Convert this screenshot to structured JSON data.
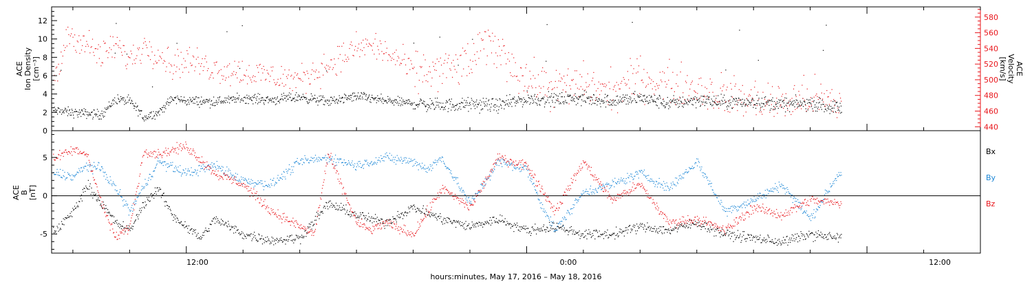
{
  "colors": {
    "black": "#000000",
    "red": "#e8141a",
    "blue": "#1a86d6"
  },
  "xaxis": {
    "title": "hours:minutes, May 17, 2016 – May 18, 2016",
    "ticks": [
      "12:00",
      "0:00",
      "12:00"
    ],
    "range_hours": [
      -4.75,
      28.0
    ],
    "tick_hours": [
      0,
      12,
      24
    ]
  },
  "chart_data": [
    {
      "type": "scatter",
      "panel": "top",
      "ylabel_left": [
        "ACE",
        "Ion Density",
        "[cm⁻³]"
      ],
      "ylabel_right": [
        "ACE",
        "Velocity",
        "[km/s]"
      ],
      "yticks_left": [
        "0",
        "2",
        "4",
        "6",
        "8",
        "10",
        "12"
      ],
      "yticks_right": [
        "440",
        "460",
        "480",
        "500",
        "520",
        "540",
        "560",
        "580"
      ],
      "ylim_left": [
        0,
        13.5
      ],
      "ylim_right": [
        435,
        593
      ],
      "x_unit": "hours from May 17, 2016 12:00",
      "series": [
        {
          "axis": "left",
          "color": "#000000",
          "x": [
            -4.6,
            -4.0,
            -3.0,
            -2.5,
            -2.0,
            -1.5,
            -1.0,
            -0.5,
            0.0,
            1.0,
            2.0,
            3.0,
            4.0,
            5.0,
            6.0,
            7.0,
            8.0,
            9.0,
            10.0,
            11.0,
            12.0,
            13.0,
            13.5,
            14.0,
            15.0,
            16.0,
            17.0,
            18.0,
            19.0,
            20.0,
            21.0,
            22.0,
            23.0
          ],
          "y": [
            2.2,
            2.0,
            1.8,
            3.5,
            3.2,
            1.5,
            2.0,
            3.5,
            3.3,
            3.2,
            3.6,
            3.4,
            3.7,
            3.2,
            3.8,
            3.3,
            3.0,
            2.8,
            2.9,
            2.8,
            3.5,
            3.4,
            3.6,
            3.5,
            3.3,
            3.6,
            3.0,
            3.4,
            3.1,
            3.2,
            2.9,
            3.0,
            2.5
          ]
        },
        {
          "axis": "right",
          "color": "#e8141a",
          "x": [
            -4.6,
            -4.2,
            -3.5,
            -3.0,
            -2.5,
            -2.0,
            -1.5,
            -1.0,
            -0.5,
            0.0,
            1.0,
            2.0,
            3.0,
            4.0,
            5.0,
            5.5,
            6.0,
            6.5,
            7.0,
            7.5,
            8.0,
            9.0,
            10.0,
            10.5,
            11.0,
            12.0,
            13.0,
            14.0,
            15.0,
            16.0,
            17.0,
            18.0,
            19.0,
            20.0,
            21.0,
            22.0,
            23.0
          ],
          "y": [
            500,
            560,
            545,
            530,
            545,
            525,
            545,
            535,
            520,
            525,
            515,
            510,
            505,
            500,
            520,
            530,
            540,
            545,
            535,
            525,
            510,
            512,
            522,
            545,
            540,
            500,
            490,
            495,
            485,
            505,
            495,
            490,
            480,
            475,
            470,
            478,
            468
          ]
        }
      ]
    },
    {
      "type": "scatter",
      "panel": "bottom",
      "ylabel_left": [
        "ACE",
        "B",
        "[nT]"
      ],
      "yticks_left": [
        "-5",
        "0",
        "5"
      ],
      "ylim": [
        -7.5,
        8.5
      ],
      "legend": [
        "Bx",
        "By",
        "Bz"
      ],
      "x_unit": "hours from May 17, 2016 12:00",
      "series": [
        {
          "name": "Bx",
          "color": "#000000",
          "x": [
            -4.6,
            -4.0,
            -3.5,
            -3.0,
            -2.5,
            -2.0,
            -1.5,
            -1.0,
            -0.5,
            0.0,
            0.5,
            1.0,
            1.5,
            2.0,
            3.0,
            4.0,
            5.0,
            6.0,
            7.0,
            8.0,
            9.0,
            10.0,
            11.0,
            12.0,
            13.0,
            14.0,
            15.0,
            16.0,
            17.0,
            18.0,
            19.0,
            20.0,
            21.0,
            22.0,
            23.0
          ],
          "y": [
            -4.5,
            -2.0,
            1.5,
            -1.0,
            -3.5,
            -4.5,
            -1.0,
            1.0,
            -2.5,
            -4.0,
            -5.5,
            -3.0,
            -4.0,
            -5.0,
            -5.8,
            -5.5,
            -1.0,
            -2.5,
            -3.5,
            -1.5,
            -3.0,
            -4.0,
            -3.0,
            -4.5,
            -4.0,
            -5.0,
            -5.0,
            -4.0,
            -4.5,
            -3.5,
            -5.0,
            -5.5,
            -6.0,
            -5.0,
            -5.5
          ]
        },
        {
          "name": "By",
          "color": "#1a86d6",
          "x": [
            -4.6,
            -4.0,
            -3.5,
            -3.0,
            -2.5,
            -2.0,
            -1.0,
            0.0,
            1.0,
            2.0,
            3.0,
            4.0,
            5.0,
            6.0,
            7.0,
            8.0,
            8.5,
            9.0,
            10.0,
            11.0,
            12.0,
            12.5,
            13.0,
            14.0,
            15.0,
            16.0,
            17.0,
            18.0,
            19.0,
            20.0,
            21.0,
            22.0,
            23.0
          ],
          "y": [
            3.0,
            2.5,
            4.0,
            3.5,
            1.0,
            -2.0,
            4.5,
            3.0,
            4.0,
            2.0,
            1.5,
            4.5,
            5.0,
            4.0,
            5.0,
            4.5,
            3.5,
            5.0,
            -1.0,
            4.5,
            3.5,
            -1.0,
            -4.5,
            0.5,
            1.5,
            3.0,
            1.0,
            4.5,
            -2.0,
            -0.5,
            1.5,
            -3.0,
            3.0
          ]
        },
        {
          "name": "Bz",
          "color": "#e8141a",
          "x": [
            -4.6,
            -4.0,
            -3.5,
            -3.0,
            -2.5,
            -2.0,
            -1.5,
            -1.0,
            0.0,
            1.0,
            2.0,
            3.0,
            4.0,
            4.5,
            5.0,
            6.0,
            6.5,
            7.0,
            8.0,
            9.0,
            10.0,
            11.0,
            12.0,
            13.0,
            14.0,
            15.0,
            16.0,
            17.0,
            18.0,
            19.0,
            20.0,
            21.0,
            22.0,
            23.0
          ],
          "y": [
            5.0,
            6.0,
            5.5,
            -1.0,
            -5.5,
            -4.0,
            6.0,
            5.5,
            6.5,
            3.0,
            1.5,
            -2.0,
            -4.0,
            -5.0,
            5.5,
            -3.5,
            -4.5,
            -3.5,
            -5.0,
            1.0,
            -1.5,
            5.0,
            4.0,
            -2.0,
            4.5,
            -0.5,
            1.5,
            -3.5,
            -3.0,
            -4.5,
            -1.5,
            -2.5,
            -0.5,
            -1.0
          ]
        }
      ]
    }
  ]
}
